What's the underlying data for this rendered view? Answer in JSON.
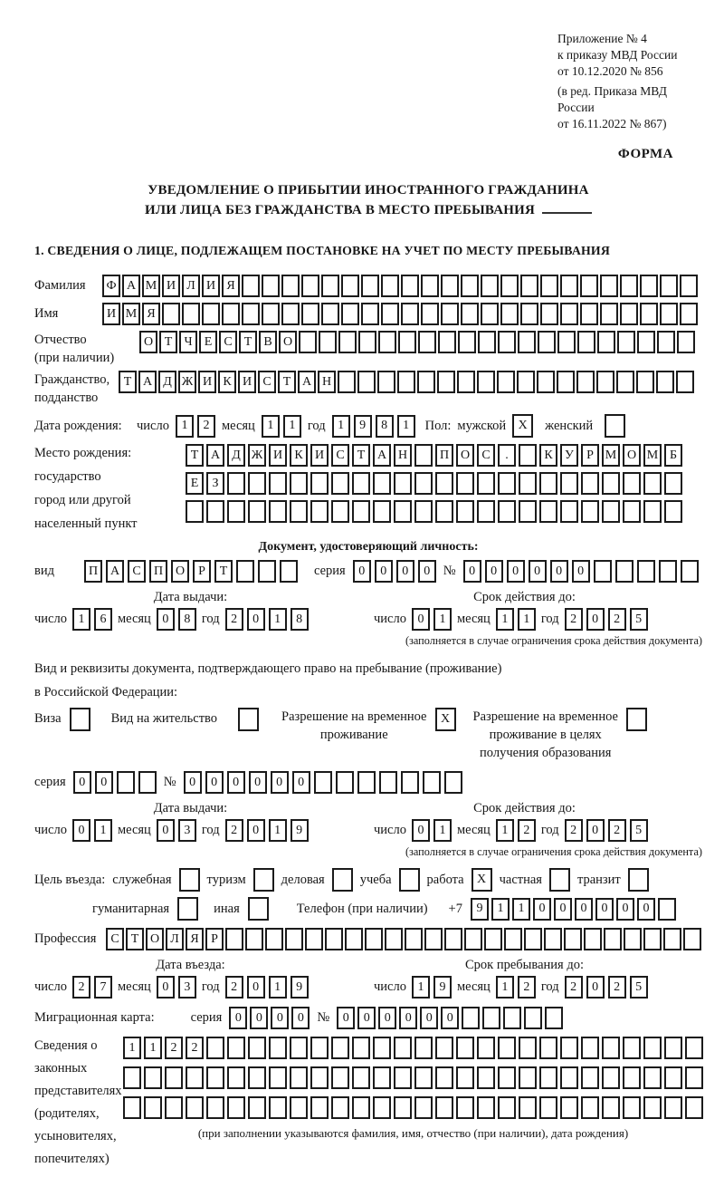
{
  "colors": {
    "ink": "#1b1b1b",
    "paper": "#ffffff"
  },
  "header": {
    "annex_lines": [
      "Приложение № 4",
      "к приказу МВД России",
      "от 10.12.2020 № 856"
    ],
    "annex_note": [
      "(в ред. Приказа МВД России",
      "от 16.11.2022 № 867)"
    ],
    "forma": "ФОРМА"
  },
  "title": {
    "line1": "УВЕДОМЛЕНИЕ О ПРИБЫТИИ ИНОСТРАННОГО ГРАЖДАНИНА",
    "line2": "ИЛИ ЛИЦА БЕЗ ГРАЖДАНСТВА В МЕСТО ПРЕБЫВАНИЯ"
  },
  "section1": {
    "heading": "1. СВЕДЕНИЯ О ЛИЦЕ, ПОДЛЕЖАЩЕМ ПОСТАНОВКЕ НА УЧЕТ ПО МЕСТУ ПРЕБЫВАНИЯ"
  },
  "labels": {
    "surname": "Фамилия",
    "name": "Имя",
    "patronymic": [
      "Отчество",
      "(при наличии)"
    ],
    "citizenship": [
      "Гражданство,",
      "подданство"
    ],
    "birth_date": "Дата рождения:",
    "day": "число",
    "month": "месяц",
    "year": "год",
    "sex": "Пол:",
    "male": "мужской",
    "female": "женский",
    "birthplace": [
      "Место рождения:",
      "государство",
      "город или другой",
      "населенный пункт"
    ],
    "identity_doc_heading": "Документ, удостоверяющий личность:",
    "doc_type": "вид",
    "series": "серия",
    "number": "№",
    "issue_date": "Дата выдачи:",
    "valid_until": "Срок действия до:",
    "restriction_note": "(заполняется в случае ограничения срока действия документа)",
    "residence_doc_line1": "Вид и реквизиты документа, подтверждающего право на пребывание (проживание)",
    "residence_doc_line2": "в Российской Федерации:",
    "visa": "Виза",
    "residence_permit": "Вид на жительство",
    "temp_residence": [
      "Разрешение на временное",
      "проживание"
    ],
    "temp_residence_edu": [
      "Разрешение на временное",
      "проживание в целях",
      "получения образования"
    ],
    "purpose": "Цель въезда:",
    "purpose_official": "служебная",
    "purpose_tourism": "туризм",
    "purpose_business": "деловая",
    "purpose_study": "учеба",
    "purpose_work": "работа",
    "purpose_private": "частная",
    "purpose_transit": "транзит",
    "purpose_humanitarian": "гуманитарная",
    "purpose_other": "иная",
    "phone": "Телефон (при наличии)",
    "phone_prefix": "+7",
    "profession": "Профессия",
    "entry_date": "Дата въезда:",
    "stay_until": "Срок пребывания до:",
    "migration_card": "Миграционная карта:",
    "guardians": [
      "Сведения о",
      "законных",
      "представителях",
      "(родителях,",
      "усыновителях,",
      "попечителях)"
    ],
    "guardians_note": "(при заполнении указываются фамилия, имя, отчество (при наличии), дата рождения)"
  },
  "box_rows": {
    "surname": {
      "cells": 30,
      "value": "ФАМИЛИЯ"
    },
    "name": {
      "cells": 30,
      "value": "ИМЯ"
    },
    "patronymic": {
      "cells": 28,
      "value": "ОТЧЕСТВО"
    },
    "citizenship": {
      "cells": 29,
      "value": "ТАДЖИКИСТАН"
    },
    "birth_day": {
      "cells": 2,
      "value": "12"
    },
    "birth_month": {
      "cells": 2,
      "value": "11"
    },
    "birth_year": {
      "cells": 4,
      "value": "1981"
    },
    "birthplace_1": {
      "cells": 24,
      "value": "ТАДЖИКИСТАН ПОС. КУРМОМБ"
    },
    "birthplace_2": {
      "cells": 24,
      "value": "ЕЗ"
    },
    "birthplace_3": {
      "cells": 24,
      "value": ""
    },
    "doc_type": {
      "cells": 10,
      "value": "ПАСПОРТ"
    },
    "doc_series": {
      "cells": 4,
      "value": "0000"
    },
    "doc_number": {
      "cells": 11,
      "value": "000000"
    },
    "doc_issue_day": {
      "cells": 2,
      "value": "16"
    },
    "doc_issue_month": {
      "cells": 2,
      "value": "08"
    },
    "doc_issue_year": {
      "cells": 4,
      "value": "2018"
    },
    "doc_valid_day": {
      "cells": 2,
      "value": "01"
    },
    "doc_valid_month": {
      "cells": 2,
      "value": "11"
    },
    "doc_valid_year": {
      "cells": 4,
      "value": "2025"
    },
    "permit_series": {
      "cells": 4,
      "value": "00"
    },
    "permit_number": {
      "cells": 13,
      "value": "000000"
    },
    "permit_issue_day": {
      "cells": 2,
      "value": "01"
    },
    "permit_issue_month": {
      "cells": 2,
      "value": "03"
    },
    "permit_issue_year": {
      "cells": 4,
      "value": "2019"
    },
    "permit_valid_day": {
      "cells": 2,
      "value": "01"
    },
    "permit_valid_month": {
      "cells": 2,
      "value": "12"
    },
    "permit_valid_year": {
      "cells": 4,
      "value": "2025"
    },
    "phone": {
      "cells": 10,
      "value": "911000000"
    },
    "profession": {
      "cells": 30,
      "value": "СТОЛЯР"
    },
    "entry_day": {
      "cells": 2,
      "value": "27"
    },
    "entry_month": {
      "cells": 2,
      "value": "03"
    },
    "entry_year": {
      "cells": 4,
      "value": "2019"
    },
    "stay_day": {
      "cells": 2,
      "value": "19"
    },
    "stay_month": {
      "cells": 2,
      "value": "12"
    },
    "stay_year": {
      "cells": 4,
      "value": "2025"
    },
    "migcard_series": {
      "cells": 4,
      "value": "0000"
    },
    "migcard_number": {
      "cells": 11,
      "value": "000000"
    },
    "guardians_1": {
      "cells": 28,
      "value": "1122"
    },
    "guardians_2": {
      "cells": 28,
      "value": ""
    },
    "guardians_3": {
      "cells": 28,
      "value": ""
    }
  },
  "checkboxes": {
    "male": "X",
    "female": "",
    "visa": "",
    "residence_permit": "",
    "temp_residence": "X",
    "temp_residence_edu": "",
    "official": "",
    "tourism": "",
    "business": "",
    "study": "",
    "work": "X",
    "private": "",
    "transit": "",
    "humanitarian": "",
    "other": ""
  }
}
